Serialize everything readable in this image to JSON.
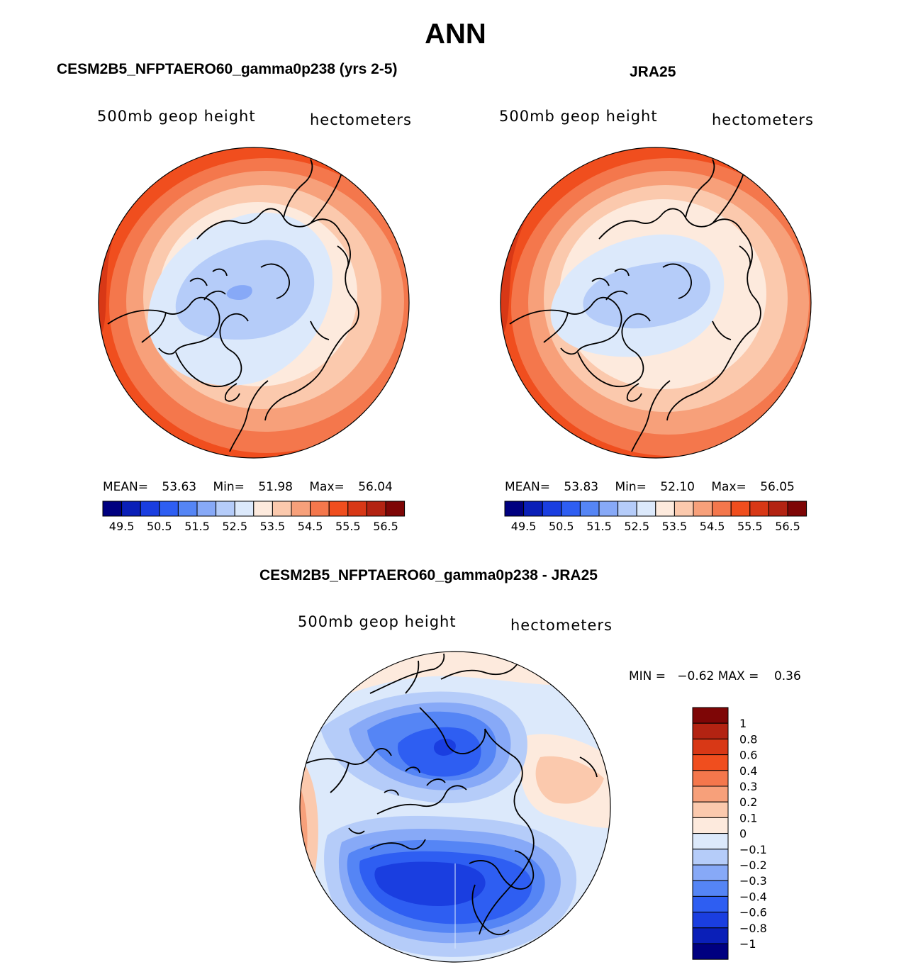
{
  "figure": {
    "title": "ANN"
  },
  "panels": {
    "model": {
      "title": "CESM2B5_NFPTAERO60_gamma0p238 (yrs 2-5)",
      "variable": "500mb geop height",
      "units": "hectometers",
      "mean_label": "MEAN=",
      "mean": "53.63",
      "min_label": "Min=",
      "min": "51.98",
      "max_label": "Max=",
      "max": "56.04"
    },
    "obs": {
      "title": "JRA25",
      "variable": "500mb geop height",
      "units": "hectometers",
      "mean_label": "MEAN=",
      "mean": "53.83",
      "min_label": "Min=",
      "min": "52.10",
      "max_label": "Max=",
      "max": "56.05"
    },
    "diff": {
      "title": "CESM2B5_NFPTAERO60_gamma0p238 - JRA25",
      "variable": "500mb geop height",
      "units": "hectometers",
      "minmax_text": "MIN =   −0.62 MAX =    0.36"
    }
  },
  "colorbars": {
    "main": {
      "colors": [
        "#000080",
        "#0a1fb8",
        "#1a3ee0",
        "#2e5ef2",
        "#5585f5",
        "#87a9f7",
        "#b5ccf9",
        "#dce9fb",
        "#fdeadd",
        "#fbc9ad",
        "#f7a07a",
        "#f4774c",
        "#f04e1e",
        "#d83816",
        "#b32312",
        "#7e0606"
      ],
      "labels": [
        "49.5",
        "50.5",
        "51.5",
        "52.5",
        "53.5",
        "54.5",
        "55.5",
        "56.5"
      ]
    },
    "diff": {
      "colors": [
        "#7e0606",
        "#b32312",
        "#d83816",
        "#f04e1e",
        "#f4774c",
        "#f7a07a",
        "#fbc9ad",
        "#fdeadd",
        "#dce9fb",
        "#b5ccf9",
        "#87a9f7",
        "#5585f5",
        "#2e5ef2",
        "#1a3ee0",
        "#0a1fb8",
        "#000080"
      ],
      "labels": [
        "1",
        "0.8",
        "0.6",
        "0.4",
        "0.3",
        "0.2",
        "0.1",
        "0",
        "−0.1",
        "−0.2",
        "−0.3",
        "−0.4",
        "−0.6",
        "−0.8",
        "−1"
      ]
    }
  },
  "chart_data": [
    {
      "type": "heatmap",
      "title": "CESM2B5_NFPTAERO60_gamma0p238 (yrs 2-5)",
      "projection": "north-polar-stereographic",
      "variable": "500mb geop height",
      "units": "hectometers",
      "mean": 53.63,
      "min": 51.98,
      "max": 56.04,
      "contour_levels": [
        49.5,
        50.0,
        50.5,
        51.0,
        51.5,
        52.0,
        52.5,
        53.0,
        53.5,
        54.0,
        54.5,
        55.0,
        55.5,
        56.0,
        56.5
      ]
    },
    {
      "type": "heatmap",
      "title": "JRA25",
      "projection": "north-polar-stereographic",
      "variable": "500mb geop height",
      "units": "hectometers",
      "mean": 53.83,
      "min": 52.1,
      "max": 56.05,
      "contour_levels": [
        49.5,
        50.0,
        50.5,
        51.0,
        51.5,
        52.0,
        52.5,
        53.0,
        53.5,
        54.0,
        54.5,
        55.0,
        55.5,
        56.0,
        56.5
      ]
    },
    {
      "type": "heatmap",
      "title": "CESM2B5_NFPTAERO60_gamma0p238 - JRA25",
      "projection": "north-polar-stereographic",
      "variable": "500mb geop height",
      "units": "hectometers",
      "min": -0.62,
      "max": 0.36,
      "contour_levels": [
        -1,
        -0.8,
        -0.6,
        -0.4,
        -0.3,
        -0.2,
        -0.1,
        0,
        0.1,
        0.2,
        0.3,
        0.4,
        0.6,
        0.8,
        1
      ]
    }
  ]
}
